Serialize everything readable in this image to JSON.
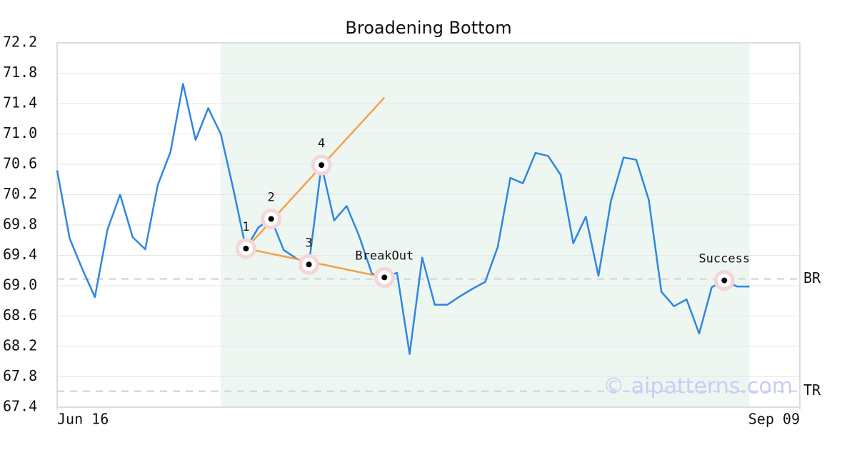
{
  "chart_data": {
    "type": "line",
    "title": "Broadening Bottom",
    "x": [
      0,
      1,
      2,
      3,
      4,
      5,
      6,
      7,
      8,
      9,
      10,
      11,
      12,
      13,
      14,
      15,
      16,
      17,
      18,
      19,
      20,
      21,
      22,
      23,
      24,
      25,
      26,
      27,
      28,
      29,
      30,
      31,
      32,
      33,
      34,
      35,
      36,
      37,
      38,
      39,
      40,
      41,
      42,
      43,
      44,
      45,
      46,
      47,
      48,
      49,
      50,
      51,
      52,
      53,
      54,
      55
    ],
    "series": [
      {
        "color": "#2f86e0",
        "values": [
          70.52,
          69.62,
          69.22,
          68.85,
          69.74,
          70.2,
          69.64,
          69.48,
          70.33,
          70.76,
          71.66,
          70.92,
          71.34,
          71.0,
          70.27,
          69.49,
          69.77,
          69.88,
          69.47,
          69.36,
          69.28,
          70.59,
          69.86,
          70.05,
          69.65,
          69.16,
          69.11,
          69.17,
          68.1,
          69.37,
          68.75,
          68.75,
          68.86,
          68.96,
          69.05,
          69.51,
          70.42,
          70.35,
          70.75,
          70.71,
          70.46,
          69.56,
          69.91,
          69.13,
          70.12,
          70.69,
          70.66,
          70.13,
          68.92,
          68.73,
          68.82,
          68.37,
          68.98,
          69.07,
          68.99,
          68.99
        ]
      }
    ],
    "xlim": [
      0,
      59
    ],
    "xticks": [
      {
        "value": 0,
        "label": "Jun 16"
      },
      {
        "value": 59,
        "label": "Sep 09"
      }
    ],
    "ylim": [
      67.4,
      72.2
    ],
    "yticks": [
      67.4,
      67.8,
      68.2,
      68.6,
      {
        "value": 69.0,
        "label": "69.0"
      },
      69.4,
      69.8,
      70.2,
      70.6,
      {
        "value": 71.0,
        "label": "71.0"
      },
      71.4,
      71.8,
      72.2
    ],
    "grid": true,
    "shaded_range": [
      13,
      55
    ],
    "shade_color": "#eef6f2",
    "levels": [
      {
        "label": "BR",
        "value": 69.09
      },
      {
        "label": "TR",
        "value": 67.61
      }
    ],
    "trend_color": "#f4a04a",
    "trend_lines": [
      {
        "x": [
          15,
          26
        ],
        "values": [
          69.49,
          71.48
        ]
      },
      {
        "x": [
          15,
          26
        ],
        "values": [
          69.49,
          69.11
        ]
      }
    ],
    "points": [
      {
        "label": "1",
        "x": 15,
        "value": 69.49
      },
      {
        "label": "2",
        "x": 17,
        "value": 69.88
      },
      {
        "label": "3",
        "x": 20,
        "value": 69.28
      },
      {
        "label": "4",
        "x": 21,
        "value": 70.59
      },
      {
        "label": "BreakOut",
        "x": 26,
        "value": 69.11
      },
      {
        "label": "Success",
        "x": 53,
        "value": 69.07
      }
    ],
    "watermark": "© aipatterns.com"
  }
}
